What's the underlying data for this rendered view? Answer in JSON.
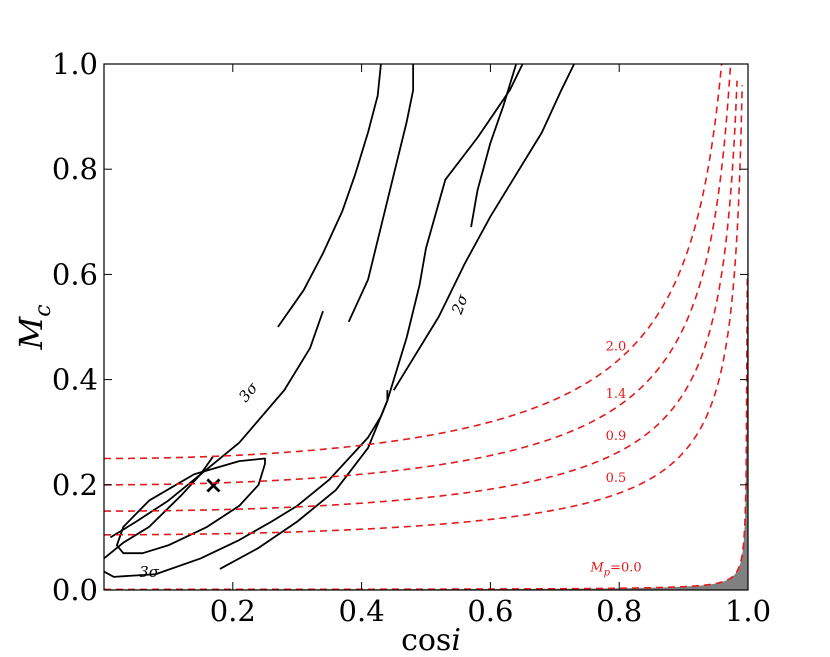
{
  "chart_data": {
    "type": "line",
    "title": "",
    "xlabel": "cos i",
    "ylabel": "M_c",
    "xlabel_parts": {
      "text": "cos",
      "italic": "i"
    },
    "ylabel_parts": {
      "text": "M",
      "sub": "c"
    },
    "xlim": [
      0.0,
      1.0
    ],
    "ylim": [
      0.0,
      1.0
    ],
    "xticks": [
      "0.2",
      "0.4",
      "0.6",
      "0.8",
      "1.0"
    ],
    "yticks": [
      "0.0",
      "0.2",
      "0.4",
      "0.6",
      "0.8",
      "1.0"
    ],
    "colors": {
      "contour": "#000000",
      "mass_curve": "#e31a1c",
      "excluded": "#808080"
    },
    "best_fit": {
      "x": 0.17,
      "y": 0.2,
      "marker": "×"
    },
    "contours": [
      {
        "name": "1σ",
        "closed": true,
        "points": [
          [
            0.25,
            0.25
          ],
          [
            0.21,
            0.245
          ],
          [
            0.14,
            0.22
          ],
          [
            0.07,
            0.17
          ],
          [
            0.03,
            0.12
          ],
          [
            0.02,
            0.085
          ],
          [
            0.03,
            0.07
          ],
          [
            0.06,
            0.07
          ],
          [
            0.1,
            0.085
          ],
          [
            0.16,
            0.12
          ],
          [
            0.21,
            0.16
          ],
          [
            0.24,
            0.2
          ],
          [
            0.25,
            0.24
          ],
          [
            0.25,
            0.25
          ]
        ]
      },
      {
        "name": "2σ-lower",
        "points": [
          [
            0.18,
            0.04
          ],
          [
            0.24,
            0.08
          ],
          [
            0.3,
            0.13
          ],
          [
            0.36,
            0.19
          ],
          [
            0.41,
            0.27
          ],
          [
            0.44,
            0.36
          ],
          [
            0.47,
            0.48
          ],
          [
            0.49,
            0.58
          ],
          [
            0.5,
            0.65
          ],
          [
            0.53,
            0.78
          ],
          [
            0.58,
            0.86
          ],
          [
            0.63,
            0.95
          ],
          [
            0.65,
            1.0
          ]
        ]
      },
      {
        "name": "2σ-upper",
        "points": [
          [
            0.01,
            0.1
          ],
          [
            0.05,
            0.13
          ],
          [
            0.1,
            0.17
          ],
          [
            0.17,
            0.24
          ],
          [
            0.21,
            0.28
          ],
          [
            0.28,
            0.38
          ],
          [
            0.32,
            0.46
          ],
          [
            0.34,
            0.53
          ]
        ]
      },
      {
        "name": "3σ-outer",
        "points": [
          [
            0.0,
            0.035
          ],
          [
            0.015,
            0.025
          ],
          [
            0.08,
            0.03
          ],
          [
            0.15,
            0.06
          ],
          [
            0.21,
            0.095
          ],
          [
            0.26,
            0.13
          ],
          [
            0.3,
            0.16
          ],
          [
            0.35,
            0.21
          ],
          [
            0.38,
            0.25
          ],
          [
            0.41,
            0.29
          ],
          [
            0.43,
            0.33
          ],
          [
            0.44,
            0.36
          ],
          [
            0.44,
            0.38
          ]
        ]
      },
      {
        "name": "3σ-inner-left",
        "points": [
          [
            0.0,
            0.06
          ],
          [
            0.03,
            0.09
          ],
          [
            0.07,
            0.12
          ],
          [
            0.12,
            0.18
          ],
          [
            0.15,
            0.22
          ],
          [
            0.17,
            0.255
          ]
        ]
      },
      {
        "name": "3σ-upper",
        "points": [
          [
            0.27,
            0.5
          ],
          [
            0.31,
            0.57
          ],
          [
            0.34,
            0.64
          ],
          [
            0.37,
            0.72
          ],
          [
            0.39,
            0.79
          ],
          [
            0.41,
            0.87
          ],
          [
            0.425,
            0.94
          ],
          [
            0.43,
            1.0
          ]
        ]
      },
      {
        "name": "3σ-right-upper",
        "points": [
          [
            0.38,
            0.51
          ],
          [
            0.41,
            0.59
          ],
          [
            0.43,
            0.69
          ],
          [
            0.45,
            0.79
          ],
          [
            0.47,
            0.89
          ],
          [
            0.48,
            0.95
          ],
          [
            0.48,
            1.0
          ]
        ]
      },
      {
        "name": "2σ-right",
        "points": [
          [
            0.57,
            0.69
          ],
          [
            0.58,
            0.76
          ],
          [
            0.6,
            0.85
          ],
          [
            0.62,
            0.92
          ],
          [
            0.63,
            0.96
          ],
          [
            0.64,
            1.0
          ]
        ]
      },
      {
        "name": "1σ-right",
        "points": [
          [
            0.45,
            0.38
          ],
          [
            0.48,
            0.44
          ],
          [
            0.52,
            0.52
          ],
          [
            0.56,
            0.62
          ],
          [
            0.6,
            0.71
          ],
          [
            0.64,
            0.79
          ],
          [
            0.68,
            0.87
          ],
          [
            0.71,
            0.95
          ],
          [
            0.73,
            1.0
          ]
        ]
      }
    ],
    "contour_labels": [
      {
        "text": "3σ",
        "x": 0.23,
        "y": 0.37,
        "rotate": -50
      },
      {
        "text": "2σ",
        "x": 0.56,
        "y": 0.54,
        "rotate": -70
      },
      {
        "text": "3σ",
        "x": 0.07,
        "y": 0.025,
        "rotate": 0
      }
    ],
    "mass_curves": [
      {
        "label": "2.0",
        "Mp": 2.0,
        "y0": 0.25
      },
      {
        "label": "1.4",
        "Mp": 1.4,
        "y0": 0.2
      },
      {
        "label": "0.9",
        "Mp": 0.9,
        "y0": 0.15
      },
      {
        "label": "0.5",
        "Mp": 0.5,
        "y0": 0.105
      },
      {
        "label": "=0.0",
        "Mp": 0.0,
        "y0": 0.0,
        "prefix": "M",
        "sub": "p"
      }
    ],
    "excluded_region_label": ""
  }
}
